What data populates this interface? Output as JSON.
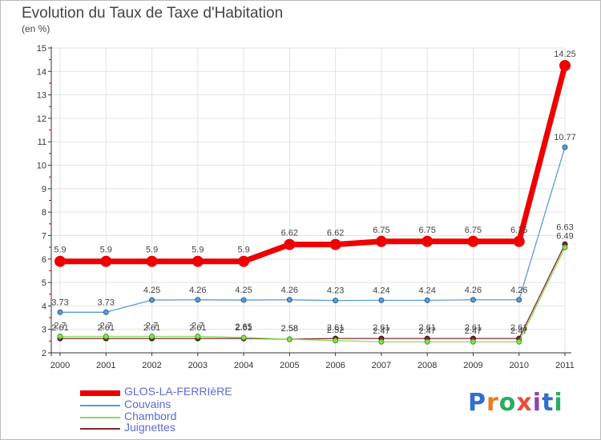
{
  "chart_data": {
    "type": "line",
    "title": "Evolution du Taux de Taxe d'Habitation",
    "subtitle": "(en %)",
    "xlabel": "",
    "ylabel": "",
    "categories": [
      "2000",
      "2001",
      "2002",
      "2003",
      "2004",
      "2005",
      "2006",
      "2007",
      "2008",
      "2009",
      "2010",
      "2011"
    ],
    "ylim": [
      2,
      15
    ],
    "yticks": [
      "2",
      "3",
      "4",
      "5",
      "6",
      "7",
      "8",
      "9",
      "10",
      "11",
      "12",
      "13",
      "14",
      "15"
    ],
    "series": [
      {
        "name": "GLOS-LA-FERRIèRE",
        "color": "#ee0000",
        "values": [
          5.9,
          5.9,
          5.9,
          5.9,
          5.9,
          6.62,
          6.62,
          6.75,
          6.75,
          6.75,
          6.75,
          14.25
        ],
        "labels": [
          "5.9",
          "5.9",
          "5.9",
          "5.9",
          "5.9",
          "6.62",
          "6.62",
          "6.75",
          "6.75",
          "6.75",
          "6.75",
          "14.25"
        ]
      },
      {
        "name": "Couvains",
        "color": "#5b9bd5",
        "values": [
          3.73,
          3.73,
          4.25,
          4.26,
          4.25,
          4.26,
          4.23,
          4.24,
          4.24,
          4.26,
          4.26,
          10.77
        ],
        "labels": [
          "3.73",
          "3.73",
          "4.25",
          "4.26",
          "4.25",
          "4.26",
          "4.23",
          "4.24",
          "4.24",
          "4.26",
          "4.26",
          "10.77"
        ]
      },
      {
        "name": "Chambord",
        "color": "#88dd55",
        "values": [
          2.7,
          2.7,
          2.7,
          2.7,
          2.65,
          2.58,
          2.52,
          2.47,
          2.47,
          2.47,
          2.47,
          6.49
        ],
        "labels": [
          "2.7",
          "2.7",
          "2.7",
          "2.7",
          "2.65",
          "2.58",
          "2.52",
          "2.47",
          "2.47",
          "2.47",
          "2.47",
          "6.49"
        ]
      },
      {
        "name": "Juignettes",
        "color": "#7a2a2a",
        "values": [
          2.61,
          2.61,
          2.61,
          2.61,
          2.61,
          2.58,
          2.61,
          2.61,
          2.61,
          2.61,
          2.61,
          6.63
        ],
        "labels": [
          "2.61",
          "2.61",
          "2.61",
          "2.61",
          "2.61",
          "2.58",
          "2.61",
          "2.61",
          "2.61",
          "2.61",
          "2.61",
          "6.63"
        ]
      }
    ]
  },
  "logo": {
    "letters": [
      "P",
      "r",
      "o",
      "x",
      "i",
      "t",
      "i"
    ],
    "colors": [
      "#2f6fcf",
      "#e67e22",
      "#27ae60",
      "#e74c3c",
      "#8e44ad",
      "#2f6fcf",
      "#27ae60"
    ]
  }
}
